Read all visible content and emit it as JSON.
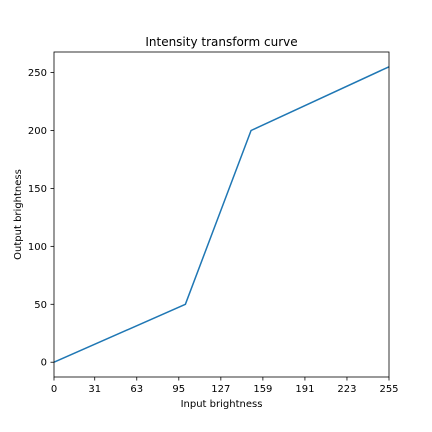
{
  "chart_data": {
    "type": "line",
    "title": "Intensity transform curve",
    "xlabel": "Input brightness",
    "ylabel": "Output brightness",
    "xlim": [
      0,
      255
    ],
    "ylim": [
      -12.75,
      267.75
    ],
    "xticks": [
      0,
      31,
      63,
      95,
      127,
      159,
      191,
      223,
      255
    ],
    "yticks": [
      0,
      50,
      100,
      150,
      200,
      250
    ],
    "grid": false,
    "legend": "none",
    "line_color": "#1f77b4",
    "series": [
      {
        "x": [
          0,
          100,
          150,
          255
        ],
        "y": [
          0,
          50,
          200,
          255
        ]
      }
    ]
  }
}
